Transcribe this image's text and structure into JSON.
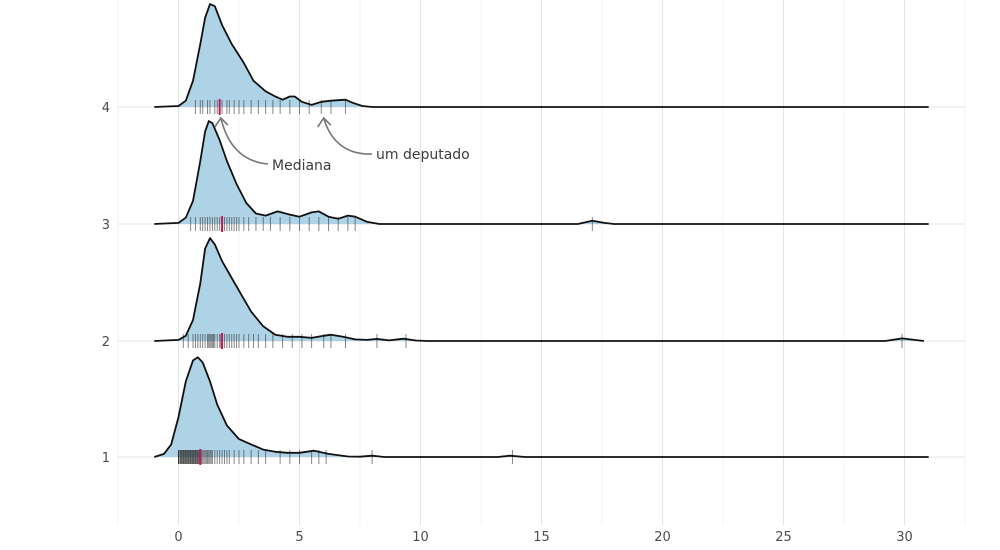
{
  "chart_data": {
    "type": "ridgeline",
    "title": "",
    "xlabel": "",
    "ylabel": "",
    "xlim": [
      -2.5,
      32.5
    ],
    "x_ticks": [
      0,
      5,
      10,
      15,
      20,
      25,
      30
    ],
    "y_categories": [
      "1",
      "2",
      "3",
      "4"
    ],
    "grid": true,
    "colors": {
      "fill": "#a6cee3",
      "outline": "#111111",
      "rug": "#222222",
      "median": "#c2185b",
      "annotation": "#777777"
    },
    "series": [
      {
        "category": "1",
        "median": 0.9,
        "density": [
          [
            -1,
            0
          ],
          [
            -0.6,
            0.03
          ],
          [
            -0.3,
            0.12
          ],
          [
            0,
            0.38
          ],
          [
            0.3,
            0.72
          ],
          [
            0.6,
            0.92
          ],
          [
            0.8,
            0.95
          ],
          [
            1.0,
            0.9
          ],
          [
            1.3,
            0.72
          ],
          [
            1.6,
            0.5
          ],
          [
            2.0,
            0.3
          ],
          [
            2.5,
            0.17
          ],
          [
            3.0,
            0.12
          ],
          [
            3.5,
            0.07
          ],
          [
            4.0,
            0.05
          ],
          [
            4.5,
            0.04
          ],
          [
            5.0,
            0.04
          ],
          [
            5.6,
            0.06
          ],
          [
            6.2,
            0.03
          ],
          [
            7.0,
            0.005
          ],
          [
            7.5,
            0.003
          ],
          [
            8.0,
            0.012
          ],
          [
            8.5,
            0
          ],
          [
            13.2,
            0
          ],
          [
            13.7,
            0.012
          ],
          [
            14.3,
            0
          ],
          [
            31,
            0
          ]
        ],
        "rug": [
          0,
          0,
          0,
          0.05,
          0.08,
          0.1,
          0.12,
          0.15,
          0.18,
          0.2,
          0.22,
          0.25,
          0.28,
          0.3,
          0.32,
          0.35,
          0.38,
          0.4,
          0.42,
          0.45,
          0.48,
          0.5,
          0.52,
          0.55,
          0.58,
          0.6,
          0.62,
          0.65,
          0.68,
          0.7,
          0.72,
          0.75,
          0.78,
          0.8,
          0.82,
          0.85,
          0.88,
          0.9,
          0.95,
          1.0,
          1.05,
          1.1,
          1.15,
          1.2,
          1.25,
          1.3,
          1.35,
          1.4,
          1.5,
          1.6,
          1.7,
          1.8,
          1.9,
          2.0,
          2.1,
          2.3,
          2.5,
          2.7,
          3.0,
          3.3,
          3.6,
          4.2,
          4.6,
          5.0,
          5.5,
          5.8,
          6.1,
          8.0,
          13.8
        ]
      },
      {
        "category": "2",
        "median": 1.8,
        "density": [
          [
            -1,
            0
          ],
          [
            0,
            0.01
          ],
          [
            0.3,
            0.05
          ],
          [
            0.6,
            0.2
          ],
          [
            0.9,
            0.55
          ],
          [
            1.1,
            0.88
          ],
          [
            1.3,
            0.98
          ],
          [
            1.5,
            0.92
          ],
          [
            1.8,
            0.76
          ],
          [
            2.2,
            0.6
          ],
          [
            2.6,
            0.44
          ],
          [
            3.0,
            0.28
          ],
          [
            3.5,
            0.14
          ],
          [
            4.0,
            0.06
          ],
          [
            4.5,
            0.04
          ],
          [
            5.0,
            0.04
          ],
          [
            5.5,
            0.03
          ],
          [
            6.0,
            0.05
          ],
          [
            6.3,
            0.06
          ],
          [
            6.8,
            0.04
          ],
          [
            7.3,
            0.015
          ],
          [
            7.8,
            0.01
          ],
          [
            8.2,
            0.02
          ],
          [
            8.7,
            0.006
          ],
          [
            9.3,
            0.022
          ],
          [
            9.8,
            0.005
          ],
          [
            10.3,
            0
          ],
          [
            29.2,
            0
          ],
          [
            29.9,
            0.025
          ],
          [
            30.8,
            0
          ]
        ],
        "rug": [
          0.2,
          0.4,
          0.6,
          0.7,
          0.8,
          0.9,
          1.0,
          1.1,
          1.2,
          1.25,
          1.3,
          1.35,
          1.4,
          1.45,
          1.5,
          1.6,
          1.7,
          1.75,
          1.8,
          1.9,
          2.0,
          2.1,
          2.2,
          2.3,
          2.4,
          2.5,
          2.7,
          2.9,
          3.1,
          3.3,
          3.6,
          3.9,
          4.3,
          4.7,
          5.1,
          5.5,
          6.0,
          6.3,
          6.9,
          8.2,
          9.4,
          29.9
        ]
      },
      {
        "category": "3",
        "median": 1.8,
        "density": [
          [
            -1,
            0
          ],
          [
            0,
            0.01
          ],
          [
            0.3,
            0.06
          ],
          [
            0.6,
            0.22
          ],
          [
            0.9,
            0.6
          ],
          [
            1.1,
            0.88
          ],
          [
            1.25,
            0.98
          ],
          [
            1.4,
            0.96
          ],
          [
            1.7,
            0.8
          ],
          [
            2.0,
            0.6
          ],
          [
            2.4,
            0.38
          ],
          [
            2.8,
            0.2
          ],
          [
            3.2,
            0.1
          ],
          [
            3.6,
            0.08
          ],
          [
            4.1,
            0.12
          ],
          [
            4.6,
            0.09
          ],
          [
            5.0,
            0.07
          ],
          [
            5.5,
            0.11
          ],
          [
            5.8,
            0.12
          ],
          [
            6.2,
            0.07
          ],
          [
            6.6,
            0.05
          ],
          [
            7.0,
            0.08
          ],
          [
            7.3,
            0.07
          ],
          [
            7.8,
            0.02
          ],
          [
            8.3,
            0
          ],
          [
            16.5,
            0
          ],
          [
            17.1,
            0.03
          ],
          [
            17.6,
            0.01
          ],
          [
            18.0,
            0
          ],
          [
            31,
            0
          ]
        ],
        "rug": [
          0.5,
          0.7,
          0.9,
          1.0,
          1.1,
          1.2,
          1.3,
          1.4,
          1.5,
          1.6,
          1.7,
          1.8,
          1.9,
          2.0,
          2.1,
          2.2,
          2.3,
          2.4,
          2.5,
          2.7,
          2.9,
          3.2,
          3.5,
          3.8,
          4.2,
          4.6,
          5.0,
          5.4,
          5.8,
          6.2,
          6.6,
          7.0,
          7.3,
          17.1
        ]
      },
      {
        "category": "4",
        "median": 1.7,
        "density": [
          [
            -1,
            0
          ],
          [
            0,
            0.01
          ],
          [
            0.3,
            0.06
          ],
          [
            0.6,
            0.25
          ],
          [
            0.9,
            0.6
          ],
          [
            1.1,
            0.85
          ],
          [
            1.3,
            0.98
          ],
          [
            1.5,
            0.96
          ],
          [
            1.8,
            0.78
          ],
          [
            2.2,
            0.6
          ],
          [
            2.7,
            0.42
          ],
          [
            3.1,
            0.25
          ],
          [
            3.6,
            0.15
          ],
          [
            4.0,
            0.1
          ],
          [
            4.3,
            0.07
          ],
          [
            4.6,
            0.1
          ],
          [
            4.8,
            0.1
          ],
          [
            5.1,
            0.05
          ],
          [
            5.5,
            0.02
          ],
          [
            5.9,
            0.05
          ],
          [
            6.3,
            0.06
          ],
          [
            6.9,
            0.07
          ],
          [
            7.2,
            0.04
          ],
          [
            7.6,
            0.01
          ],
          [
            8.0,
            0
          ],
          [
            31,
            0
          ]
        ],
        "rug": [
          0.7,
          0.9,
          1.0,
          1.2,
          1.3,
          1.5,
          1.6,
          1.7,
          1.8,
          2.0,
          2.1,
          2.3,
          2.5,
          2.7,
          3.0,
          3.3,
          3.6,
          3.9,
          4.2,
          4.6,
          5.0,
          5.4,
          5.9,
          6.3,
          6.9
        ]
      }
    ],
    "annotations": [
      {
        "text": "Mediana",
        "target_x": 1.75,
        "target_category": "4"
      },
      {
        "text": "um deputado",
        "target_x": 6.0,
        "target_category": "4"
      }
    ]
  }
}
